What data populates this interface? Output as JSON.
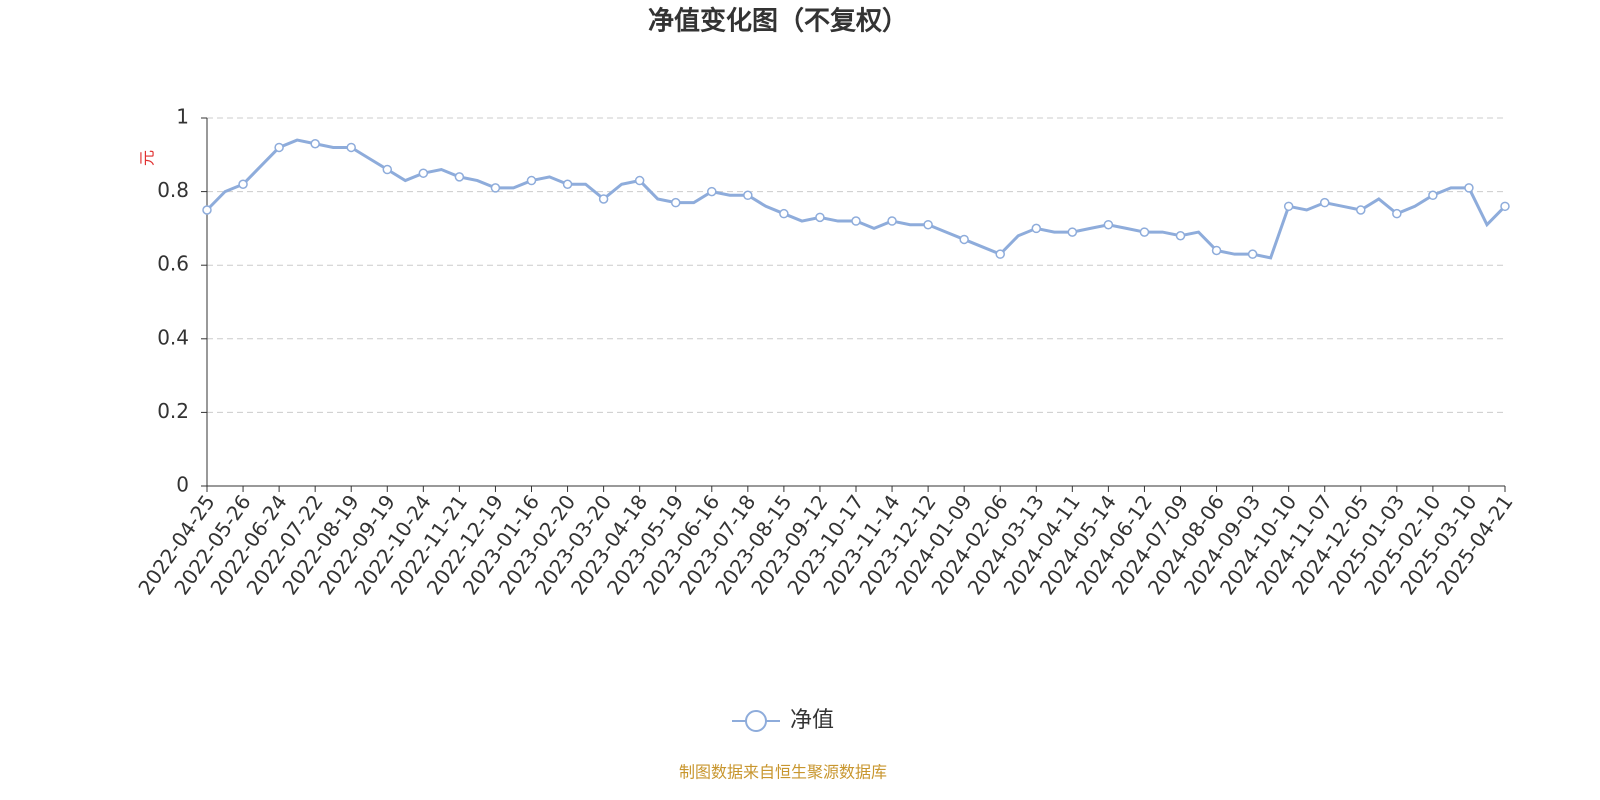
{
  "chart_data": {
    "type": "line",
    "title": "净值变化图（不复权）",
    "y_label": "元",
    "source": "制图数据来自恒生聚源数据库",
    "categories": [
      "2022-04-25",
      null,
      "2022-05-26",
      null,
      "2022-06-24",
      null,
      "2022-07-22",
      null,
      "2022-08-19",
      null,
      "2022-09-19",
      null,
      "2022-10-24",
      null,
      "2022-11-21",
      null,
      "2022-12-19",
      null,
      "2023-01-16",
      null,
      "2023-02-20",
      null,
      "2023-03-20",
      null,
      "2023-04-18",
      null,
      "2023-05-19",
      null,
      "2023-06-16",
      null,
      "2023-07-18",
      null,
      "2023-08-15",
      null,
      "2023-09-12",
      null,
      "2023-10-17",
      null,
      "2023-11-14",
      null,
      "2023-12-12",
      null,
      "2024-01-09",
      null,
      "2024-02-06",
      null,
      "2024-03-13",
      null,
      "2024-04-11",
      null,
      "2024-05-14",
      null,
      "2024-06-12",
      null,
      "2024-07-09",
      null,
      "2024-08-06",
      null,
      "2024-09-03",
      null,
      "2024-10-10",
      null,
      "2024-11-07",
      null,
      "2024-12-05",
      null,
      "2025-01-03",
      null,
      "2025-02-10",
      null,
      "2025-03-10",
      null,
      "2025-04-21"
    ],
    "series": [
      {
        "name": "净值",
        "color": "#8eacdb",
        "values": [
          0.75,
          0.8,
          0.82,
          0.87,
          0.92,
          0.94,
          0.93,
          0.92,
          0.92,
          0.89,
          0.86,
          0.83,
          0.85,
          0.86,
          0.84,
          0.83,
          0.81,
          0.81,
          0.83,
          0.84,
          0.82,
          0.82,
          0.78,
          0.82,
          0.83,
          0.78,
          0.77,
          0.77,
          0.8,
          0.79,
          0.79,
          0.76,
          0.74,
          0.72,
          0.73,
          0.72,
          0.72,
          0.7,
          0.72,
          0.71,
          0.71,
          0.69,
          0.67,
          0.65,
          0.63,
          0.68,
          0.7,
          0.69,
          0.69,
          0.7,
          0.71,
          0.7,
          0.69,
          0.69,
          0.68,
          0.69,
          0.64,
          0.63,
          0.63,
          0.62,
          0.76,
          0.75,
          0.77,
          0.76,
          0.75,
          0.78,
          0.74,
          0.76,
          0.79,
          0.81,
          0.81,
          0.71,
          0.76
        ]
      }
    ],
    "ylim": [
      0,
      1
    ],
    "yticks": [
      0,
      0.2,
      0.4,
      0.6,
      0.8,
      1
    ],
    "grid": true,
    "legend": "bottom"
  }
}
